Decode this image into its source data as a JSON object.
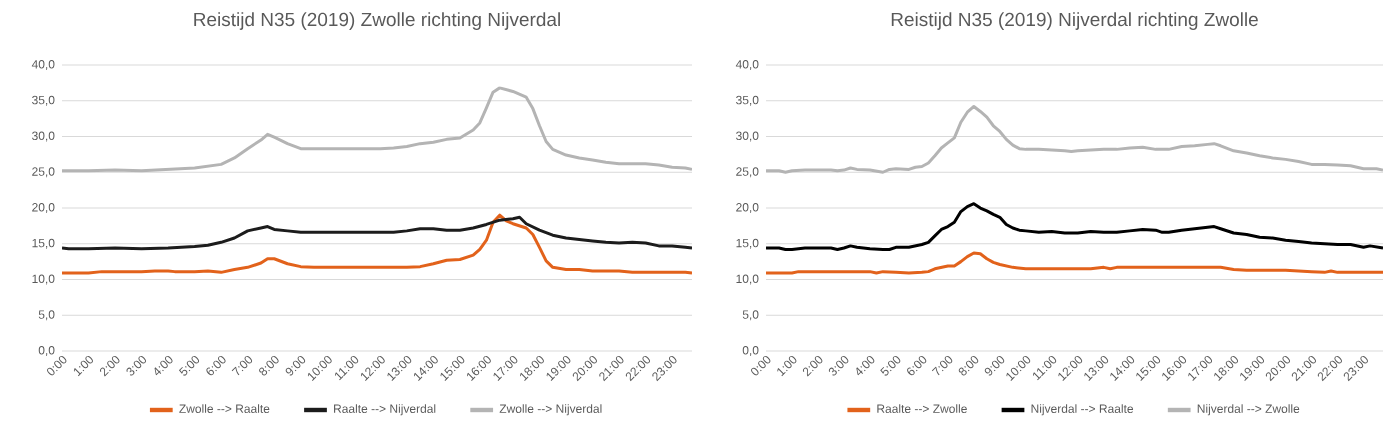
{
  "chart_data": [
    {
      "type": "line",
      "title": "Reistijd N35 (2019) Zwolle richting Nijverdal",
      "grid": "y",
      "legend": "bottom",
      "marker": "none",
      "line_style": "solid",
      "xlim": [
        0,
        23.75
      ],
      "ylim": [
        0,
        40
      ],
      "xticks": [
        {
          "value": 0,
          "label": "0:00"
        },
        {
          "value": 1,
          "label": "1:00"
        },
        {
          "value": 2,
          "label": "2:00"
        },
        {
          "value": 3,
          "label": "3:00"
        },
        {
          "value": 4,
          "label": "4:00"
        },
        {
          "value": 5,
          "label": "5:00"
        },
        {
          "value": 6,
          "label": "6:00"
        },
        {
          "value": 7,
          "label": "7:00"
        },
        {
          "value": 8,
          "label": "8:00"
        },
        {
          "value": 9,
          "label": "9:00"
        },
        {
          "value": 10,
          "label": "10:00"
        },
        {
          "value": 11,
          "label": "11:00"
        },
        {
          "value": 12,
          "label": "12:00"
        },
        {
          "value": 13,
          "label": "13:00"
        },
        {
          "value": 14,
          "label": "14:00"
        },
        {
          "value": 15,
          "label": "15:00"
        },
        {
          "value": 16,
          "label": "16:00"
        },
        {
          "value": 17,
          "label": "17:00"
        },
        {
          "value": 18,
          "label": "18:00"
        },
        {
          "value": 19,
          "label": "19:00"
        },
        {
          "value": 20,
          "label": "20:00"
        },
        {
          "value": 21,
          "label": "21:00"
        },
        {
          "value": 22,
          "label": "22:00"
        },
        {
          "value": 23,
          "label": "23:00"
        }
      ],
      "yticks": [
        {
          "value": 0,
          "label": "0,0"
        },
        {
          "value": 5,
          "label": "5,0"
        },
        {
          "value": 10,
          "label": "10,0"
        },
        {
          "value": 15,
          "label": "15,0"
        },
        {
          "value": 20,
          "label": "20,0"
        },
        {
          "value": 25,
          "label": "25,0"
        },
        {
          "value": 30,
          "label": "30,0"
        },
        {
          "value": 35,
          "label": "35,0"
        },
        {
          "value": 40,
          "label": "40,0"
        }
      ],
      "series": [
        {
          "name": "Zwolle --> Raalte",
          "color": "#e2621b",
          "x": [
            0,
            1,
            1.5,
            3,
            3.5,
            4,
            4.25,
            5,
            5.5,
            6,
            6.5,
            7,
            7.5,
            7.75,
            8,
            8.5,
            9,
            9.5,
            13,
            13.5,
            14,
            14.5,
            15,
            15.5,
            15.75,
            16,
            16.25,
            16.5,
            16.75,
            17,
            17.5,
            17.75,
            18,
            18.25,
            18.5,
            19,
            19.5,
            20,
            21,
            21.5,
            23.5,
            23.75
          ],
          "values": [
            10.9,
            10.9,
            11.1,
            11.1,
            11.2,
            11.2,
            11.1,
            11.1,
            11.2,
            11.0,
            11.4,
            11.7,
            12.3,
            12.9,
            12.9,
            12.2,
            11.8,
            11.7,
            11.7,
            11.8,
            12.2,
            12.7,
            12.8,
            13.4,
            14.2,
            15.5,
            18.0,
            19.0,
            18.2,
            17.8,
            17.2,
            16.3,
            14.5,
            12.6,
            11.7,
            11.4,
            11.4,
            11.2,
            11.2,
            11.0,
            11.0,
            10.9
          ]
        },
        {
          "name": "Raalte --> Nijverdal",
          "color": "#1c1c1c",
          "x": [
            0,
            0.25,
            1,
            2,
            3,
            4,
            5,
            5.5,
            6,
            6.5,
            7,
            7.5,
            7.75,
            8,
            8.5,
            9,
            12.5,
            13,
            13.5,
            14,
            14.5,
            15,
            15.5,
            16,
            16.5,
            17,
            17.25,
            17.5,
            18,
            18.5,
            19,
            19.5,
            20,
            20.5,
            21,
            21.5,
            22,
            22.5,
            23,
            23.5,
            23.75
          ],
          "values": [
            14.4,
            14.3,
            14.3,
            14.4,
            14.3,
            14.4,
            14.6,
            14.8,
            15.2,
            15.8,
            16.8,
            17.2,
            17.4,
            17.0,
            16.8,
            16.6,
            16.6,
            16.8,
            17.1,
            17.1,
            16.9,
            16.9,
            17.2,
            17.7,
            18.3,
            18.5,
            18.7,
            17.8,
            16.9,
            16.2,
            15.8,
            15.6,
            15.4,
            15.2,
            15.1,
            15.2,
            15.1,
            14.7,
            14.7,
            14.5,
            14.4
          ]
        },
        {
          "name": "Zwolle --> Nijverdal",
          "color": "#b4b4b4",
          "x": [
            0,
            1,
            2,
            3,
            4,
            5,
            6,
            6.5,
            7,
            7.5,
            7.75,
            8,
            8.5,
            9,
            12,
            12.5,
            13,
            13.5,
            14,
            14.5,
            15,
            15.5,
            15.75,
            16,
            16.25,
            16.5,
            17,
            17.5,
            17.75,
            18,
            18.25,
            18.5,
            19,
            19.5,
            20,
            20.5,
            21,
            22,
            22.5,
            23,
            23.5,
            23.75
          ],
          "values": [
            25.2,
            25.2,
            25.3,
            25.2,
            25.4,
            25.6,
            26.1,
            27.0,
            28.3,
            29.5,
            30.3,
            29.9,
            29.0,
            28.3,
            28.3,
            28.4,
            28.6,
            29.0,
            29.2,
            29.6,
            29.8,
            30.9,
            31.9,
            34.0,
            36.2,
            36.8,
            36.3,
            35.5,
            33.9,
            31.5,
            29.3,
            28.2,
            27.4,
            27.0,
            26.7,
            26.4,
            26.2,
            26.2,
            26.0,
            25.7,
            25.6,
            25.4
          ]
        }
      ]
    },
    {
      "type": "line",
      "title": "Reistijd N35 (2019) Nijverdal richting Zwolle",
      "grid": "y",
      "legend": "bottom",
      "marker": "none",
      "line_style": "solid",
      "xlim": [
        0,
        23.75
      ],
      "ylim": [
        0,
        40
      ],
      "xticks": [
        {
          "value": 0,
          "label": "0:00"
        },
        {
          "value": 1,
          "label": "1:00"
        },
        {
          "value": 2,
          "label": "2:00"
        },
        {
          "value": 3,
          "label": "3:00"
        },
        {
          "value": 4,
          "label": "4:00"
        },
        {
          "value": 5,
          "label": "5:00"
        },
        {
          "value": 6,
          "label": "6:00"
        },
        {
          "value": 7,
          "label": "7:00"
        },
        {
          "value": 8,
          "label": "8:00"
        },
        {
          "value": 9,
          "label": "9:00"
        },
        {
          "value": 10,
          "label": "10:00"
        },
        {
          "value": 11,
          "label": "11:00"
        },
        {
          "value": 12,
          "label": "12:00"
        },
        {
          "value": 13,
          "label": "13:00"
        },
        {
          "value": 14,
          "label": "14:00"
        },
        {
          "value": 15,
          "label": "15:00"
        },
        {
          "value": 16,
          "label": "16:00"
        },
        {
          "value": 17,
          "label": "17:00"
        },
        {
          "value": 18,
          "label": "18:00"
        },
        {
          "value": 19,
          "label": "19:00"
        },
        {
          "value": 20,
          "label": "20:00"
        },
        {
          "value": 21,
          "label": "21:00"
        },
        {
          "value": 22,
          "label": "22:00"
        },
        {
          "value": 23,
          "label": "23:00"
        }
      ],
      "yticks": [
        {
          "value": 0,
          "label": "0,0"
        },
        {
          "value": 5,
          "label": "5,0"
        },
        {
          "value": 10,
          "label": "10,0"
        },
        {
          "value": 15,
          "label": "15,0"
        },
        {
          "value": 20,
          "label": "20,0"
        },
        {
          "value": 25,
          "label": "25,0"
        },
        {
          "value": 30,
          "label": "30,0"
        },
        {
          "value": 35,
          "label": "35,0"
        },
        {
          "value": 40,
          "label": "40,0"
        }
      ],
      "series": [
        {
          "name": "Raalte --> Zwolle",
          "color": "#e2621b",
          "x": [
            0,
            1,
            1.25,
            4,
            4.25,
            4.5,
            5,
            5.5,
            6,
            6.25,
            6.5,
            7,
            7.25,
            7.5,
            7.75,
            8,
            8.25,
            8.5,
            8.75,
            9,
            9.5,
            10,
            12.5,
            13,
            13.25,
            13.5,
            17.5,
            18,
            18.5,
            20,
            20.5,
            21,
            21.5,
            21.75,
            22,
            23.75
          ],
          "values": [
            10.9,
            10.9,
            11.1,
            11.1,
            10.9,
            11.1,
            11.0,
            10.9,
            11.0,
            11.1,
            11.5,
            11.9,
            11.9,
            12.5,
            13.2,
            13.7,
            13.6,
            12.9,
            12.4,
            12.1,
            11.7,
            11.5,
            11.5,
            11.7,
            11.5,
            11.7,
            11.7,
            11.4,
            11.3,
            11.3,
            11.2,
            11.1,
            11.0,
            11.2,
            11.0,
            11.0
          ]
        },
        {
          "name": "Nijverdal --> Raalte",
          "color": "#000000",
          "x": [
            0,
            0.5,
            0.75,
            1,
            1.5,
            2.5,
            2.75,
            3,
            3.25,
            3.5,
            4,
            4.5,
            4.75,
            5,
            5.5,
            6,
            6.25,
            6.5,
            6.75,
            7,
            7.25,
            7.5,
            7.75,
            8,
            8.25,
            8.5,
            8.75,
            9,
            9.25,
            9.5,
            9.75,
            10,
            10.5,
            11,
            11.5,
            12,
            12.5,
            13,
            13.5,
            14,
            14.5,
            15,
            15.25,
            15.5,
            16,
            16.5,
            17,
            17.25,
            17.5,
            18,
            18.5,
            19,
            19.5,
            20,
            20.5,
            21,
            21.5,
            22,
            22.5,
            23,
            23.25,
            23.75
          ],
          "values": [
            14.4,
            14.4,
            14.2,
            14.2,
            14.4,
            14.4,
            14.2,
            14.4,
            14.7,
            14.5,
            14.3,
            14.2,
            14.2,
            14.5,
            14.5,
            14.9,
            15.2,
            16.1,
            17.0,
            17.4,
            18.0,
            19.5,
            20.2,
            20.6,
            20.0,
            19.6,
            19.1,
            18.7,
            17.7,
            17.2,
            16.9,
            16.8,
            16.6,
            16.7,
            16.5,
            16.5,
            16.7,
            16.6,
            16.6,
            16.8,
            17.0,
            16.9,
            16.6,
            16.6,
            16.9,
            17.1,
            17.3,
            17.4,
            17.1,
            16.5,
            16.3,
            15.9,
            15.8,
            15.5,
            15.3,
            15.1,
            15.0,
            14.9,
            14.9,
            14.5,
            14.7,
            14.4
          ]
        },
        {
          "name": "Nijverdal --> Zwolle",
          "color": "#b4b4b4",
          "x": [
            0,
            0.5,
            0.75,
            1,
            1.5,
            2.5,
            2.75,
            3,
            3.25,
            3.5,
            4,
            4.5,
            4.75,
            5,
            5.5,
            5.75,
            6,
            6.25,
            6.5,
            6.75,
            7,
            7.25,
            7.5,
            7.75,
            8,
            8.25,
            8.5,
            8.75,
            9,
            9.25,
            9.5,
            9.75,
            10,
            10.5,
            11,
            11.5,
            11.75,
            12,
            12.5,
            13,
            13.5,
            14,
            14.5,
            15,
            15.5,
            16,
            16.5,
            17,
            17.25,
            17.5,
            18,
            18.5,
            19,
            19.5,
            20,
            20.5,
            21,
            21.5,
            22,
            22.5,
            23,
            23.5,
            23.75
          ],
          "values": [
            25.2,
            25.2,
            25.0,
            25.2,
            25.3,
            25.3,
            25.2,
            25.3,
            25.6,
            25.4,
            25.3,
            25.0,
            25.4,
            25.5,
            25.4,
            25.7,
            25.8,
            26.3,
            27.3,
            28.4,
            29.1,
            29.8,
            32.0,
            33.4,
            34.2,
            33.5,
            32.7,
            31.5,
            30.7,
            29.6,
            28.8,
            28.3,
            28.2,
            28.2,
            28.1,
            28.0,
            27.9,
            28.0,
            28.1,
            28.2,
            28.2,
            28.4,
            28.5,
            28.2,
            28.2,
            28.6,
            28.7,
            28.9,
            29.0,
            28.7,
            28.0,
            27.7,
            27.3,
            27.0,
            26.8,
            26.5,
            26.1,
            26.1,
            26.0,
            25.9,
            25.5,
            25.5,
            25.3
          ]
        }
      ]
    }
  ]
}
